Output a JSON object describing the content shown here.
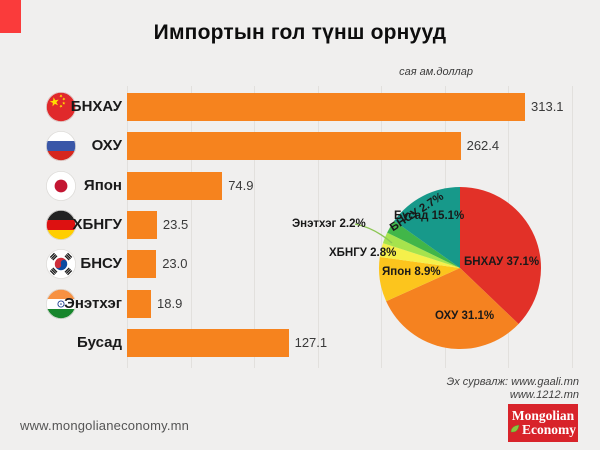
{
  "page": {
    "title": "Импортын гол түнш орнууд",
    "unit_label": "сая ам.доллар",
    "site_url": "www.mongolianeconomy.mn",
    "source_line1": "Эх сурвалж: www.gaali.mn",
    "source_line2": "www.1212.mn",
    "logo": {
      "line1": "Mongolian",
      "line2": "Economy",
      "leaf_icon": "leaf-icon"
    }
  },
  "colors": {
    "background": "#f0efee",
    "corner_accent": "#fa3b3b",
    "bar_orange": "#f6831e",
    "gridline": "#e2e0dd",
    "logo_red": "#d8232a",
    "leader_line_green": "#8cc653"
  },
  "chart_data": [
    {
      "type": "bar",
      "orientation": "horizontal",
      "title": "Импортын гол түнш орнууд",
      "unit": "сая ам.доллар",
      "categories": [
        "БНХАУ",
        "ОХУ",
        "Япон",
        "ХБНГУ",
        "БНСУ",
        "Энэтхэг",
        "Бусад"
      ],
      "values": [
        313.1,
        262.4,
        74.9,
        23.5,
        23.0,
        18.9,
        127.1
      ],
      "value_labels": [
        "313.1",
        "262.4",
        "74.9",
        "23.5",
        "23.0",
        "18.9",
        "127.1"
      ],
      "flag_icons": [
        "flag-china-icon",
        "flag-russia-icon",
        "flag-japan-icon",
        "flag-germany-icon",
        "flag-south-korea-icon",
        "flag-india-icon",
        null
      ],
      "bar_color": "#f6831e",
      "xlim": [
        0,
        350
      ],
      "gridline_step": 50,
      "grid": true,
      "legend": false
    },
    {
      "type": "pie",
      "direction": "clockwise",
      "start_angle_deg": 0,
      "slices": [
        {
          "name": "БНХАУ",
          "pct": 37.1,
          "label": "БНХАУ 37.1%",
          "color": "#e23128"
        },
        {
          "name": "ОХУ",
          "pct": 31.1,
          "label": "ОХУ 31.1%",
          "color": "#f58220"
        },
        {
          "name": "Япон",
          "pct": 8.9,
          "label": "Япон 8.9%",
          "color": "#fcc51d"
        },
        {
          "name": "ХБНГУ",
          "pct": 2.8,
          "label": "ХБНГУ 2.8%",
          "color": "#f5f04b"
        },
        {
          "name": "Энэтхэг",
          "pct": 2.2,
          "label": "Энэтхэг 2.2%",
          "color": "#a6e34d"
        },
        {
          "name": "БНСУ",
          "pct": 2.7,
          "label": "БНСУ 2.7%",
          "color": "#41b649"
        },
        {
          "name": "Бусад",
          "pct": 15.1,
          "label": "Бусад 15.1%",
          "color": "#17998a"
        }
      ]
    }
  ]
}
